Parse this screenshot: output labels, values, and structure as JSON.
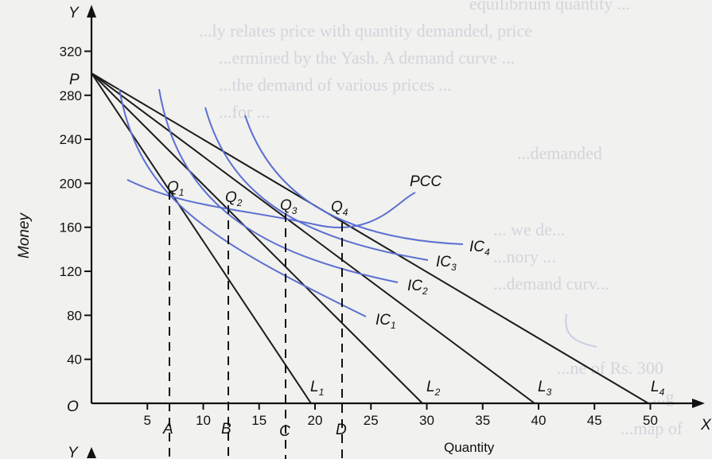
{
  "background_text": [
    "equilibrium quantity ...",
    "...ly relates price with quantity demanded, price",
    "...ermined by the Yash. A demand curve ...",
    "...the demand of various prices ...",
    "...for ...",
    "...demanded",
    "... we de...",
    "...nory ...",
    "...demand curv...",
    "...ne of Rs. 300",
    "...g",
    "...map of"
  ],
  "diagram": {
    "y_axis_letter": "Y",
    "x_axis_letter": "X",
    "origin_label": "O",
    "price_point_label": "P",
    "y_axis_title": "Money",
    "x_axis_title": "Quantity",
    "y_ticks": [
      "40",
      "80",
      "120",
      "160",
      "200",
      "240",
      "280",
      "320"
    ],
    "x_ticks": [
      "5",
      "10",
      "15",
      "20",
      "25",
      "30",
      "35",
      "40",
      "45",
      "50"
    ],
    "quantity_marks": [
      "A",
      "B",
      "C",
      "D"
    ],
    "budget_lines": [
      {
        "name": "L",
        "sub": "1",
        "x_intercept": 20
      },
      {
        "name": "L",
        "sub": "2",
        "x_intercept": 30
      },
      {
        "name": "L",
        "sub": "3",
        "x_intercept": 40
      },
      {
        "name": "L",
        "sub": "4",
        "x_intercept": 50
      }
    ],
    "indifference_curves": [
      {
        "name": "IC",
        "sub": "1"
      },
      {
        "name": "IC",
        "sub": "2"
      },
      {
        "name": "IC",
        "sub": "3"
      },
      {
        "name": "IC",
        "sub": "4"
      }
    ],
    "equilibrium_points": [
      {
        "name": "Q",
        "sub": "1"
      },
      {
        "name": "Q",
        "sub": "2"
      },
      {
        "name": "Q",
        "sub": "3"
      },
      {
        "name": "Q",
        "sub": "4"
      }
    ],
    "pcc_label": "PCC",
    "bottom_axis_letter": "Y"
  }
}
